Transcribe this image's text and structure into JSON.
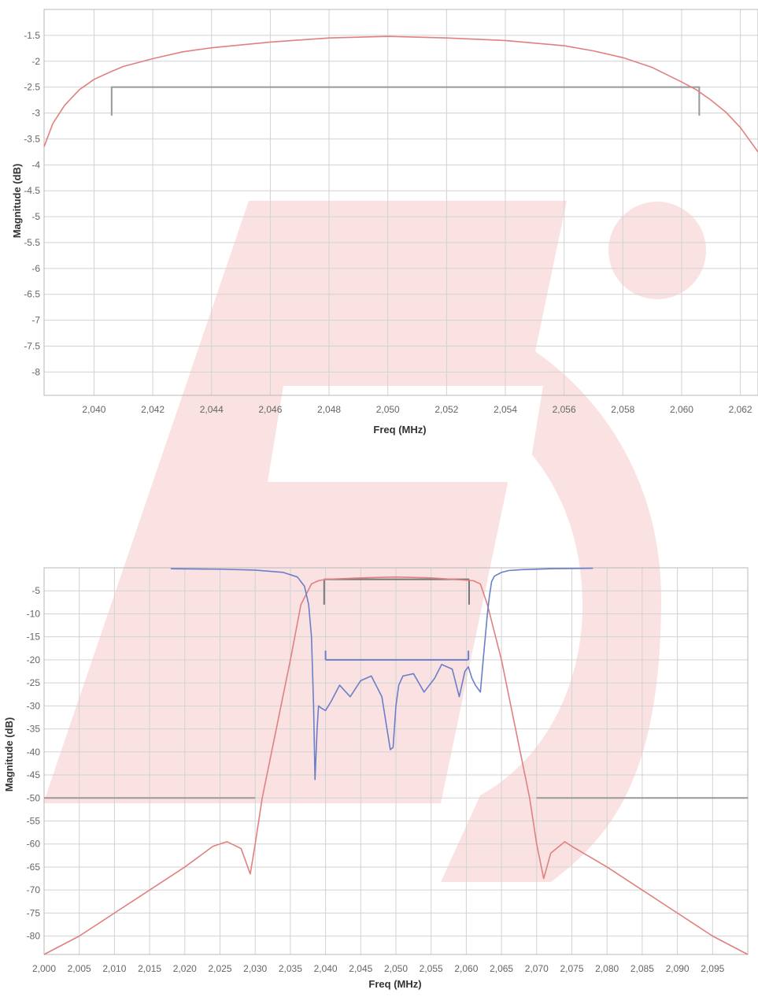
{
  "watermark": {
    "type": "logo",
    "color": "#fbe2e2"
  },
  "chart_data": [
    {
      "type": "line",
      "xlabel": "Freq (MHz)",
      "ylabel": "Magnitude (dB)",
      "xlim": [
        2038.3,
        2062.6
      ],
      "ylim": [
        -8.45,
        -1.0
      ],
      "xticks": [
        2040,
        2042,
        2044,
        2046,
        2048,
        2050,
        2052,
        2054,
        2056,
        2058,
        2060,
        2062
      ],
      "xtick_labels": [
        "2,040",
        "2,042",
        "2,044",
        "2,046",
        "2,048",
        "2,050",
        "2,052",
        "2,054",
        "2,056",
        "2,058",
        "2,060",
        "2,062"
      ],
      "yticks": [
        -1.5,
        -2,
        -2.5,
        -3,
        -3.5,
        -4,
        -4.5,
        -5,
        -5.5,
        -6,
        -6.5,
        -7,
        -7.5,
        -8
      ],
      "ytick_labels": [
        "-1.5",
        "-2",
        "-2.5",
        "-3",
        "-3.5",
        "-4",
        "-4.5",
        "-5",
        "-5.5",
        "-6",
        "-6.5",
        "-7",
        "-7.5",
        "-8"
      ],
      "grid": true,
      "series": [
        {
          "color": "#e08080",
          "x": [
            2038.3,
            2038.6,
            2039.0,
            2039.5,
            2040.0,
            2040.5,
            2041.0,
            2042.0,
            2043.0,
            2044.0,
            2046.0,
            2048.0,
            2050.0,
            2052.0,
            2054.0,
            2056.0,
            2057.0,
            2058.0,
            2059.0,
            2060.0,
            2060.5,
            2061.0,
            2061.5,
            2062.0,
            2062.6
          ],
          "y": [
            -3.65,
            -3.2,
            -2.85,
            -2.55,
            -2.35,
            -2.22,
            -2.1,
            -1.95,
            -1.82,
            -1.74,
            -1.63,
            -1.55,
            -1.52,
            -1.55,
            -1.6,
            -1.7,
            -1.8,
            -1.93,
            -2.12,
            -2.4,
            -2.55,
            -2.75,
            -2.98,
            -3.28,
            -3.75
          ]
        }
      ],
      "annotations": [
        {
          "type": "bracket",
          "x1": 2040.6,
          "x2": 2060.6,
          "y": -2.5,
          "y_end": -3.05,
          "color": "#999999"
        }
      ]
    },
    {
      "type": "line",
      "xlabel": "Freq (MHz)",
      "ylabel": "Magnitude (dB)",
      "xlim": [
        2000,
        2100
      ],
      "ylim": [
        -84,
        0
      ],
      "xticks": [
        2000,
        2005,
        2010,
        2015,
        2020,
        2025,
        2030,
        2035,
        2040,
        2045,
        2050,
        2055,
        2060,
        2065,
        2070,
        2075,
        2080,
        2085,
        2090,
        2095
      ],
      "xtick_labels": [
        "2,000",
        "2,005",
        "2,010",
        "2,015",
        "2,020",
        "2,025",
        "2,030",
        "2,035",
        "2,040",
        "2,045",
        "2,050",
        "2,055",
        "2,060",
        "2,065",
        "2,070",
        "2,075",
        "2,080",
        "2,085",
        "2,090",
        "2,095"
      ],
      "yticks": [
        -5,
        -10,
        -15,
        -20,
        -25,
        -30,
        -35,
        -40,
        -45,
        -50,
        -55,
        -60,
        -65,
        -70,
        -75,
        -80
      ],
      "ytick_labels": [
        "-5",
        "-10",
        "-15",
        "-20",
        "-25",
        "-30",
        "-35",
        "-40",
        "-45",
        "-50",
        "-55",
        "-60",
        "-65",
        "-70",
        "-75",
        "-80"
      ],
      "grid": true,
      "series": [
        {
          "color": "#e08080",
          "x": [
            2000,
            2005,
            2010,
            2015,
            2020,
            2024,
            2026,
            2028,
            2029.3,
            2030,
            2031,
            2033,
            2035,
            2036.5,
            2038,
            2039,
            2040,
            2045,
            2050,
            2055,
            2061,
            2062,
            2063,
            2065,
            2067,
            2069,
            2070,
            2071,
            2072,
            2074,
            2075,
            2080,
            2085,
            2090,
            2095,
            2100
          ],
          "y": [
            -84,
            -80,
            -75,
            -70,
            -65,
            -60.5,
            -59.5,
            -61,
            -66.5,
            -60,
            -50,
            -35,
            -20,
            -8,
            -3.5,
            -2.8,
            -2.5,
            -2.2,
            -2.0,
            -2.2,
            -2.8,
            -3.5,
            -8,
            -20,
            -35,
            -50,
            -60,
            -67.5,
            -62,
            -59.5,
            -60.5,
            -65,
            -70,
            -75,
            -80,
            -84
          ]
        },
        {
          "color": "#6a7fc8",
          "x": [
            2018,
            2025,
            2030,
            2034,
            2036,
            2037,
            2037.6,
            2038,
            2038.3,
            2038.5,
            2038.8,
            2039,
            2039.4,
            2040,
            2040.8,
            2042,
            2043.5,
            2045,
            2046.5,
            2048,
            2049.2,
            2049.6,
            2050,
            2050.4,
            2051,
            2052.5,
            2054,
            2055.5,
            2056.5,
            2058,
            2059,
            2059.8,
            2060.3,
            2060.8,
            2061.3,
            2062,
            2062.4,
            2062.7,
            2063,
            2063.3,
            2063.6,
            2064,
            2065,
            2066,
            2068,
            2072,
            2078
          ],
          "y": [
            -0.2,
            -0.3,
            -0.5,
            -1.0,
            -2.0,
            -4.0,
            -8.0,
            -15.0,
            -30.0,
            -46.0,
            -35.0,
            -30.0,
            -30.5,
            -31.0,
            -29.0,
            -25.5,
            -28.0,
            -24.5,
            -23.5,
            -28.0,
            -39.5,
            -39.0,
            -30.0,
            -25.5,
            -23.5,
            -23.0,
            -27.0,
            -24.0,
            -21.0,
            -22.0,
            -28.0,
            -22.5,
            -21.5,
            -24.0,
            -25.5,
            -27.0,
            -20.0,
            -15.0,
            -10.0,
            -6.0,
            -3.0,
            -1.8,
            -1.0,
            -0.6,
            -0.4,
            -0.2,
            -0.1
          ]
        }
      ],
      "annotations": [
        {
          "type": "line",
          "color": "#999999",
          "points": [
            [
              2000,
              -50
            ],
            [
              2030,
              -50
            ]
          ]
        },
        {
          "type": "line",
          "color": "#999999",
          "points": [
            [
              2070,
              -50
            ],
            [
              2100,
              -50
            ]
          ]
        },
        {
          "type": "line",
          "color": "#777777",
          "points": [
            [
              2039.8,
              -2.5
            ],
            [
              2060.4,
              -2.5
            ]
          ]
        },
        {
          "type": "line",
          "color": "#777777",
          "points": [
            [
              2039.8,
              -2.5
            ],
            [
              2039.8,
              -8
            ]
          ]
        },
        {
          "type": "line",
          "color": "#777777",
          "points": [
            [
              2060.4,
              -2.5
            ],
            [
              2060.4,
              -8
            ]
          ]
        },
        {
          "type": "line",
          "color": "#6a7fc8",
          "points": [
            [
              2040,
              -20
            ],
            [
              2060.3,
              -20
            ]
          ]
        },
        {
          "type": "line",
          "color": "#6a7fc8",
          "points": [
            [
              2040,
              -20
            ],
            [
              2040,
              -18
            ]
          ]
        },
        {
          "type": "line",
          "color": "#6a7fc8",
          "points": [
            [
              2060.3,
              -20
            ],
            [
              2060.3,
              -18
            ]
          ]
        }
      ]
    }
  ]
}
